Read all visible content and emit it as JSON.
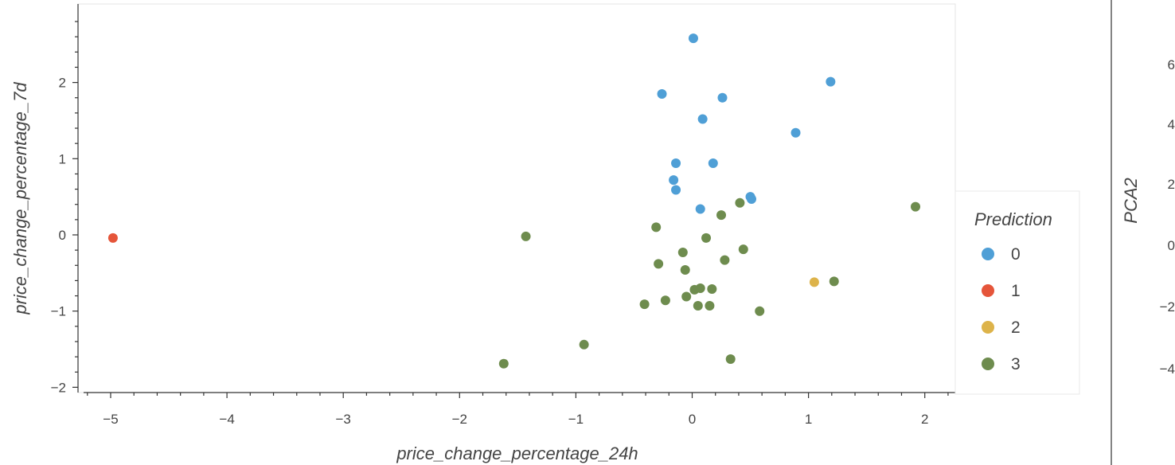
{
  "chart_data": [
    {
      "type": "scatter",
      "title": "",
      "xlabel": "price_change_percentage_24h",
      "ylabel": "price_change_percentage_7d",
      "xlim": [
        -5.23,
        2.23
      ],
      "ylim": [
        -2.05,
        3.0
      ],
      "x_ticks": [
        -5,
        -4,
        -3,
        -2,
        -1,
        0,
        1,
        2
      ],
      "y_ticks": [
        -2,
        -1,
        0,
        1,
        2
      ],
      "x_tick_labels": [
        "−5",
        "−4",
        "−3",
        "−2",
        "−1",
        "0",
        "1",
        "2"
      ],
      "y_tick_labels": [
        "−2",
        "−1",
        "0",
        "1",
        "2"
      ],
      "grid": false,
      "legend": {
        "title": "Prediction",
        "placement": "right"
      },
      "series": [
        {
          "name": "0",
          "color": "#4f9fd6",
          "points": [
            [
              0.01,
              2.58
            ],
            [
              1.19,
              2.01
            ],
            [
              -0.26,
              1.85
            ],
            [
              0.26,
              1.8
            ],
            [
              0.09,
              1.52
            ],
            [
              0.89,
              1.34
            ],
            [
              -0.14,
              0.94
            ],
            [
              0.18,
              0.94
            ],
            [
              -0.16,
              0.72
            ],
            [
              -0.14,
              0.59
            ],
            [
              0.5,
              0.5
            ],
            [
              0.51,
              0.47
            ],
            [
              0.07,
              0.34
            ]
          ]
        },
        {
          "name": "1",
          "color": "#e5553a",
          "points": [
            [
              -4.98,
              -0.04
            ]
          ]
        },
        {
          "name": "2",
          "color": "#ddb34a",
          "points": [
            [
              1.05,
              -0.62
            ]
          ]
        },
        {
          "name": "3",
          "color": "#6e8c4e",
          "points": [
            [
              1.92,
              0.37
            ],
            [
              0.41,
              0.42
            ],
            [
              0.25,
              0.26
            ],
            [
              -0.31,
              0.1
            ],
            [
              -1.43,
              -0.02
            ],
            [
              0.12,
              -0.04
            ],
            [
              0.44,
              -0.19
            ],
            [
              -0.08,
              -0.23
            ],
            [
              -0.29,
              -0.38
            ],
            [
              0.28,
              -0.33
            ],
            [
              -0.06,
              -0.46
            ],
            [
              0.07,
              -0.7
            ],
            [
              0.02,
              -0.72
            ],
            [
              0.17,
              -0.71
            ],
            [
              1.22,
              -0.61
            ],
            [
              -0.05,
              -0.81
            ],
            [
              -0.23,
              -0.86
            ],
            [
              -0.41,
              -0.91
            ],
            [
              0.05,
              -0.93
            ],
            [
              0.15,
              -0.93
            ],
            [
              0.58,
              -1.0
            ],
            [
              -0.93,
              -1.44
            ],
            [
              0.33,
              -1.63
            ],
            [
              -1.62,
              -1.69
            ]
          ]
        }
      ]
    },
    {
      "type": "scatter",
      "title": "",
      "ylabel": "PCA2",
      "y_ticks": [
        6,
        4,
        2,
        0,
        -2,
        -4
      ],
      "y_tick_labels": [
        "6",
        "4",
        "2",
        "0",
        "−2",
        "−4"
      ],
      "series": []
    }
  ]
}
